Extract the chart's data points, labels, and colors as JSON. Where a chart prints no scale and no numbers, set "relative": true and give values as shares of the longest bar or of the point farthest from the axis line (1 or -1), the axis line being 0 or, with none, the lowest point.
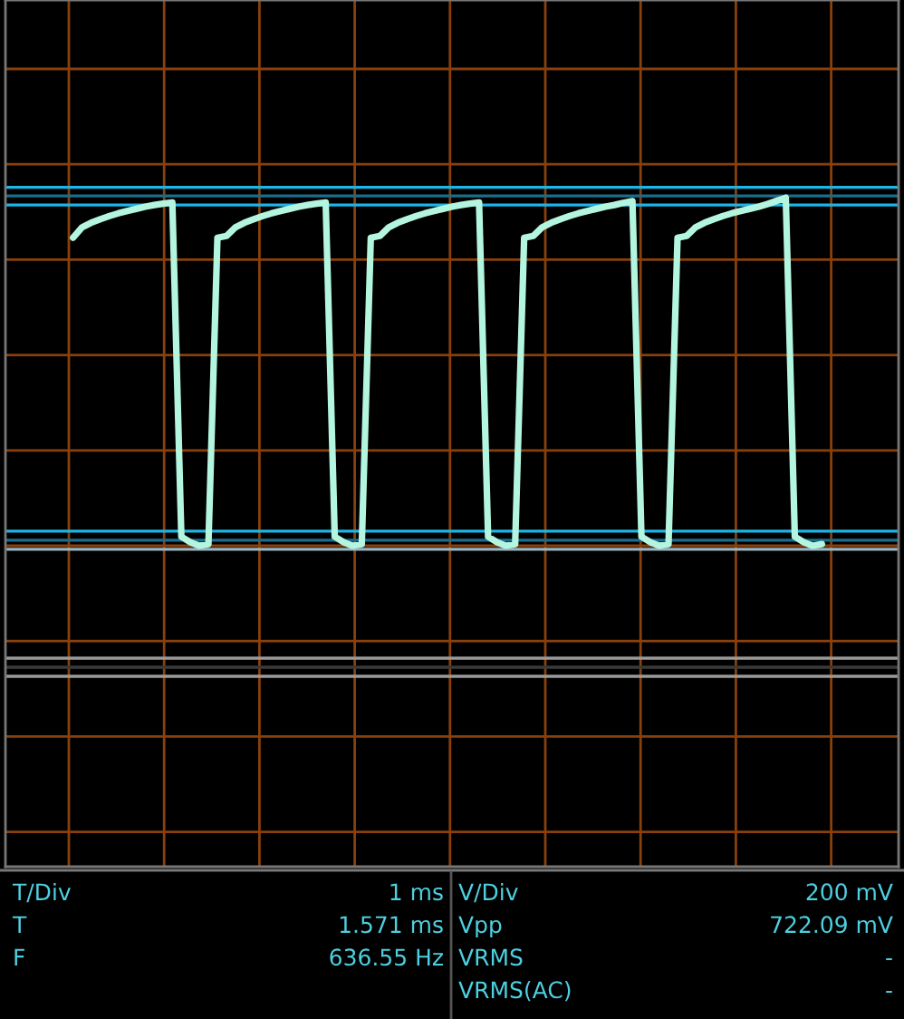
{
  "chart_data": {
    "type": "line",
    "relative": true,
    "grid": true,
    "marker": "none",
    "line_style": "solid",
    "categories": [
      null,
      null,
      null,
      null,
      null,
      null,
      null,
      null,
      null,
      null,
      null,
      null,
      null,
      null,
      null,
      null,
      null,
      null,
      null,
      null,
      null,
      null,
      null,
      null,
      null,
      null,
      null,
      null,
      null,
      null,
      null,
      null,
      null,
      null,
      null,
      null,
      null,
      null,
      null,
      null,
      null,
      null,
      null,
      null,
      null,
      null,
      null,
      null,
      null,
      null,
      null,
      null,
      null,
      null,
      null,
      null,
      null,
      null,
      null,
      null,
      null,
      null,
      null,
      null,
      null,
      null,
      null,
      null,
      null,
      null,
      null,
      null,
      null,
      null,
      null,
      null,
      null,
      null,
      null,
      null,
      null,
      null,
      null,
      null,
      null,
      null,
      null,
      null,
      null,
      null,
      null,
      null,
      null,
      null,
      null,
      null,
      null,
      null,
      null
    ],
    "series": [
      {
        "color": "#b4f5e0",
        "values": [
          null,
          null,
          null,
          null,
          null,
          null,
          null,
          0.885,
          0.915,
          0.928,
          0.938,
          0.947,
          0.955,
          0.962,
          0.968,
          0.974,
          0.979,
          0.983,
          0.986,
          0.026,
          0.01,
          0,
          0.005,
          0.885,
          0.89,
          0.915,
          0.928,
          0.938,
          0.947,
          0.955,
          0.962,
          0.968,
          0.974,
          0.979,
          0.983,
          0.986,
          0.026,
          0.01,
          0,
          0.005,
          0.885,
          0.89,
          0.915,
          0.928,
          0.938,
          0.947,
          0.955,
          0.962,
          0.968,
          0.974,
          0.979,
          0.983,
          0.986,
          0.026,
          0.01,
          0,
          0.005,
          0.885,
          0.89,
          0.915,
          0.928,
          0.938,
          0.947,
          0.955,
          0.962,
          0.968,
          0.974,
          0.979,
          0.985,
          0.99,
          0.026,
          0.01,
          0,
          0.005,
          0.885,
          0.89,
          0.915,
          0.928,
          0.938,
          0.947,
          0.955,
          0.962,
          0.968,
          0.974,
          0.982,
          0.991,
          1.0,
          0.026,
          0.01,
          0,
          0.005,
          null,
          null,
          null,
          null,
          null,
          null,
          null,
          null
        ]
      }
    ],
    "ref_lines": [
      {
        "axis": "y",
        "value": 1.03,
        "color": "#1eb4e6"
      },
      {
        "axis": "y",
        "value": 1.005,
        "color": "#1a6e8c"
      },
      {
        "axis": "y",
        "value": 0.979,
        "color": "#1eb4e6"
      },
      {
        "axis": "y",
        "value": 0.042,
        "color": "#1eb4e6"
      },
      {
        "axis": "y",
        "value": 0.016,
        "color": "#1a6e8c"
      },
      {
        "axis": "y",
        "value": -0.01,
        "color": "#9ab4c0"
      },
      {
        "axis": "y",
        "value": -0.323,
        "color": "#9a9a9a"
      },
      {
        "axis": "y",
        "value": -0.349,
        "color": "#3a3a3a"
      },
      {
        "axis": "y",
        "value": -0.375,
        "color": "#9a9a9a"
      }
    ],
    "annotations": [
      "T/Div",
      "1 ms",
      "V/Div",
      "200 mV",
      "T",
      "1.571 ms",
      "Vpp",
      "722.09 mV",
      "F",
      "636.55 Hz",
      "VRMS",
      "-",
      "VRMS(AC)",
      "-"
    ]
  }
}
